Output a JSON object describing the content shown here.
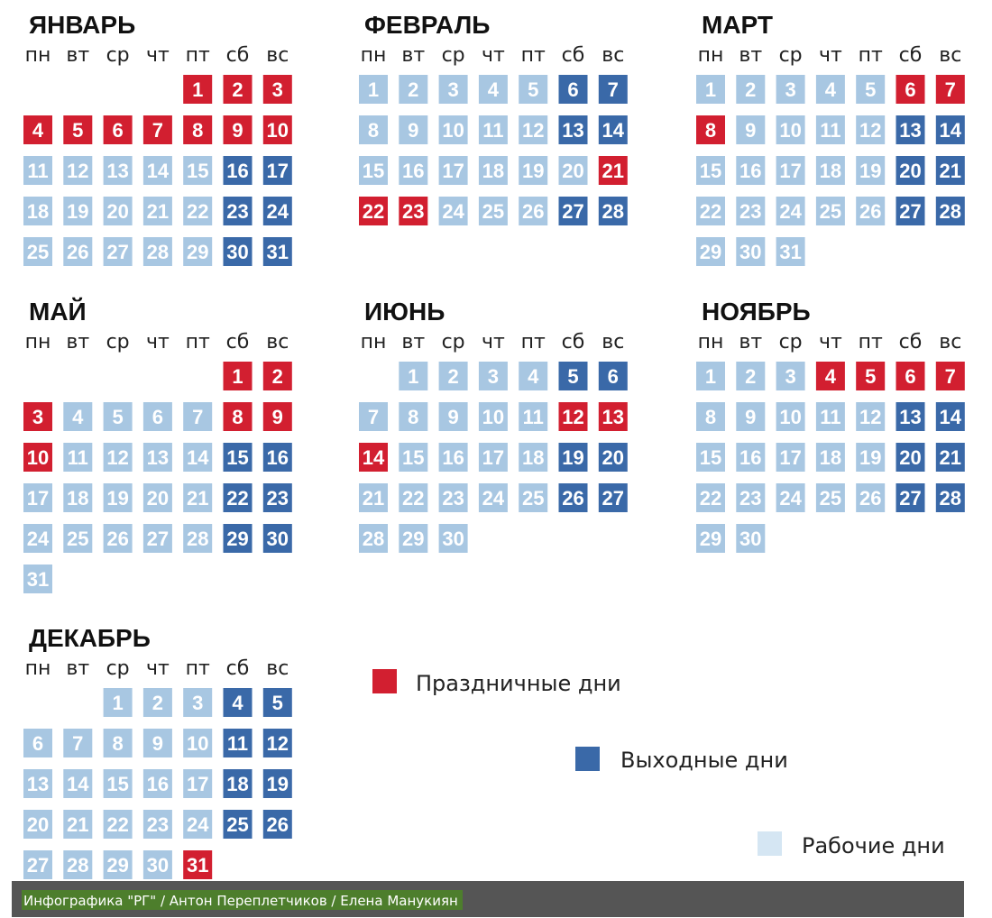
{
  "weekdays": [
    "пн",
    "вт",
    "ср",
    "чт",
    "пт",
    "сб",
    "вс"
  ],
  "months": [
    {
      "title": "ЯНВАРЬ",
      "weeks": [
        [
          null,
          null,
          null,
          null,
          1,
          2,
          3
        ],
        [
          4,
          5,
          6,
          7,
          8,
          9,
          10
        ],
        [
          11,
          12,
          13,
          14,
          15,
          16,
          17
        ],
        [
          18,
          19,
          20,
          21,
          22,
          23,
          24
        ],
        [
          25,
          26,
          27,
          28,
          29,
          30,
          31
        ]
      ],
      "holidays": [
        1,
        2,
        3,
        4,
        5,
        6,
        7,
        8,
        9,
        10
      ],
      "weekends": [
        16,
        17,
        23,
        24,
        30,
        31
      ]
    },
    {
      "title": "ФЕВРАЛЬ",
      "weeks": [
        [
          1,
          2,
          3,
          4,
          5,
          6,
          7
        ],
        [
          8,
          9,
          10,
          11,
          12,
          13,
          14
        ],
        [
          15,
          16,
          17,
          18,
          19,
          20,
          21
        ],
        [
          22,
          23,
          24,
          25,
          26,
          27,
          28
        ]
      ],
      "holidays": [
        21,
        22,
        23
      ],
      "weekends": [
        6,
        7,
        13,
        14,
        27,
        28
      ]
    },
    {
      "title": "МАРТ",
      "weeks": [
        [
          1,
          2,
          3,
          4,
          5,
          6,
          7
        ],
        [
          8,
          9,
          10,
          11,
          12,
          13,
          14
        ],
        [
          15,
          16,
          17,
          18,
          19,
          20,
          21
        ],
        [
          22,
          23,
          24,
          25,
          26,
          27,
          28
        ],
        [
          29,
          30,
          31
        ]
      ],
      "holidays": [
        6,
        7,
        8
      ],
      "weekends": [
        13,
        14,
        20,
        21,
        27,
        28
      ]
    },
    {
      "title": "МАЙ",
      "weeks": [
        [
          null,
          null,
          null,
          null,
          null,
          1,
          2
        ],
        [
          3,
          4,
          5,
          6,
          7,
          8,
          9
        ],
        [
          10,
          11,
          12,
          13,
          14,
          15,
          16
        ],
        [
          17,
          18,
          19,
          20,
          21,
          22,
          23
        ],
        [
          24,
          25,
          26,
          27,
          28,
          29,
          30
        ],
        [
          31
        ]
      ],
      "holidays": [
        1,
        2,
        3,
        8,
        9,
        10
      ],
      "weekends": [
        15,
        16,
        22,
        23,
        29,
        30
      ]
    },
    {
      "title": "ИЮНЬ",
      "weeks": [
        [
          null,
          1,
          2,
          3,
          4,
          5,
          6
        ],
        [
          7,
          8,
          9,
          10,
          11,
          12,
          13
        ],
        [
          14,
          15,
          16,
          17,
          18,
          19,
          20
        ],
        [
          21,
          22,
          23,
          24,
          25,
          26,
          27
        ],
        [
          28,
          29,
          30
        ]
      ],
      "holidays": [
        12,
        13,
        14
      ],
      "weekends": [
        5,
        6,
        19,
        20,
        26,
        27
      ]
    },
    {
      "title": "НОЯБРЬ",
      "weeks": [
        [
          1,
          2,
          3,
          4,
          5,
          6,
          7
        ],
        [
          8,
          9,
          10,
          11,
          12,
          13,
          14
        ],
        [
          15,
          16,
          17,
          18,
          19,
          20,
          21
        ],
        [
          22,
          23,
          24,
          25,
          26,
          27,
          28
        ],
        [
          29,
          30
        ]
      ],
      "holidays": [
        4,
        5,
        6,
        7
      ],
      "weekends": [
        13,
        14,
        20,
        21,
        27,
        28
      ]
    },
    {
      "title": "ДЕКАБРЬ",
      "weeks": [
        [
          null,
          null,
          1,
          2,
          3,
          4,
          5
        ],
        [
          6,
          7,
          8,
          9,
          10,
          11,
          12
        ],
        [
          13,
          14,
          15,
          16,
          17,
          18,
          19
        ],
        [
          20,
          21,
          22,
          23,
          24,
          25,
          26
        ],
        [
          27,
          28,
          29,
          30,
          31
        ]
      ],
      "holidays": [
        31
      ],
      "weekends": [
        4,
        5,
        11,
        12,
        18,
        19,
        25,
        26
      ]
    }
  ],
  "legend": [
    {
      "label": "Праздничные дни",
      "color": "#d21f30"
    },
    {
      "label": "Выходные дни",
      "color": "#3a69a8"
    },
    {
      "label": "Рабочие дни",
      "color": "#d5e6f3"
    }
  ],
  "work_color": "#a8c7e2",
  "footer": "Инфографика \"РГ\" / Антон Переплетчиков / Елена Манукиян"
}
